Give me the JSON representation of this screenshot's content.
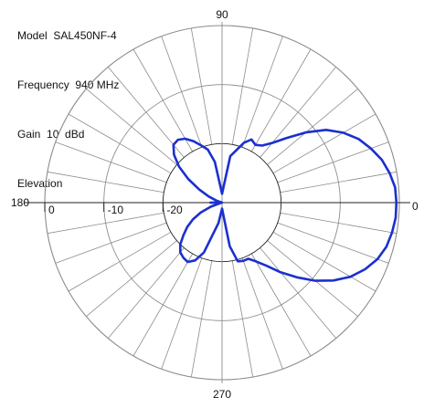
{
  "header": {
    "model": "Model  SAL450NF-4",
    "frequency": "Frequency  940 MHz",
    "gain": "Gain  10  dBd",
    "plane": "Elevation"
  },
  "chart_data": {
    "type": "polar",
    "angle_labels": [
      "0",
      "90",
      "180",
      "270"
    ],
    "radial_ticks": [
      "0",
      "-10",
      "-20"
    ],
    "radial_range_db": [
      -30,
      0
    ],
    "grid": true,
    "colors": {
      "pattern": "#1c2fcf",
      "grid": "#8c8c8c",
      "axis": "#222222"
    },
    "series": [
      {
        "angles_deg": [
          0,
          5,
          10,
          15,
          20,
          25,
          30,
          35,
          40,
          45,
          50,
          55,
          60,
          65,
          70,
          80,
          90,
          100,
          105,
          110,
          115,
          120,
          125,
          130,
          135,
          140,
          145,
          150,
          155,
          160,
          165,
          170,
          175,
          180,
          185,
          190,
          195,
          200,
          205,
          210,
          215,
          220,
          225,
          230,
          235,
          240,
          245,
          250,
          260,
          270,
          280,
          285,
          290,
          295,
          300,
          305,
          310,
          315,
          320,
          325,
          330,
          335,
          340,
          345,
          350,
          355
        ],
        "values_db": [
          -0.5,
          -0.6,
          -1.2,
          -2.0,
          -3.2,
          -4.5,
          -6.3,
          -8.5,
          -11.5,
          -14.5,
          -16.8,
          -18.2,
          -18.7,
          -18.2,
          -19.2,
          -22.0,
          -28.5,
          -23.0,
          -20.7,
          -19.7,
          -18.5,
          -17.5,
          -17.0,
          -17.2,
          -18.5,
          -20.5,
          -23.0,
          -25.5,
          -27.5,
          -29.0,
          -30.0,
          -30.0,
          -29.5,
          -28.0,
          -29.5,
          -30.0,
          -29.8,
          -28.0,
          -26.0,
          -24.3,
          -22.8,
          -21.5,
          -20.0,
          -19.0,
          -18.6,
          -18.4,
          -19.2,
          -21.0,
          -26.5,
          -29.0,
          -22.5,
          -19.7,
          -19.5,
          -19.5,
          -18.5,
          -17.0,
          -14.6,
          -12.1,
          -9.4,
          -7.0,
          -4.9,
          -3.3,
          -2.0,
          -1.2,
          -0.8,
          -0.5
        ]
      }
    ]
  }
}
